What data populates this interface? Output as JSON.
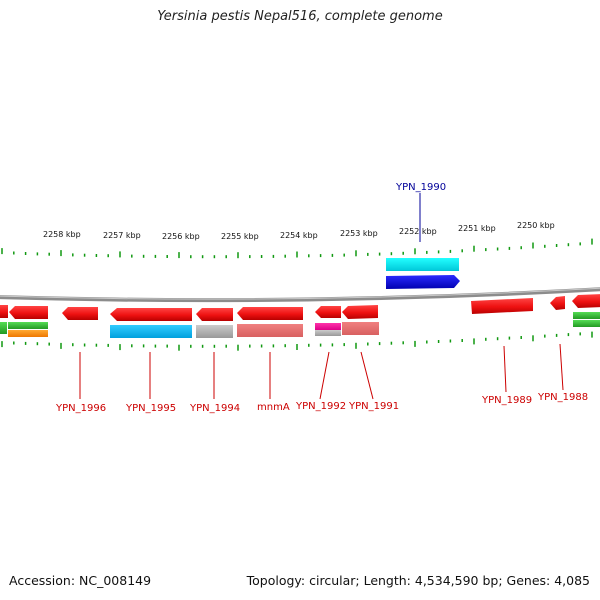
{
  "title": "Yersinia pestis Nepal516, complete genome",
  "footer": {
    "accession": "Accession: NC_008149",
    "summary": "Topology: circular; Length: 4,534,590 bp; Genes: 4,085"
  },
  "colors": {
    "forward_gene": "#ee1111",
    "highlight_gene": "#0000dd",
    "highlight_label": "#000099",
    "gene_label": "#cc0000",
    "tick": "#119911",
    "backbone": "#8c8c8c"
  },
  "kbp_labels": [
    "2258 kbp",
    "2257 kbp",
    "2256 kbp",
    "2255 kbp",
    "2254 kbp",
    "2253 kbp",
    "2252 kbp",
    "2251 kbp",
    "2250 kbp"
  ],
  "gene_labels": [
    "YPN_1996",
    "YPN_1995",
    "YPN_1994",
    "mnmA",
    "YPN_1992",
    "YPN_1991",
    "YPN_1989",
    "YPN_1988"
  ],
  "highlight_label": "YPN_1990"
}
